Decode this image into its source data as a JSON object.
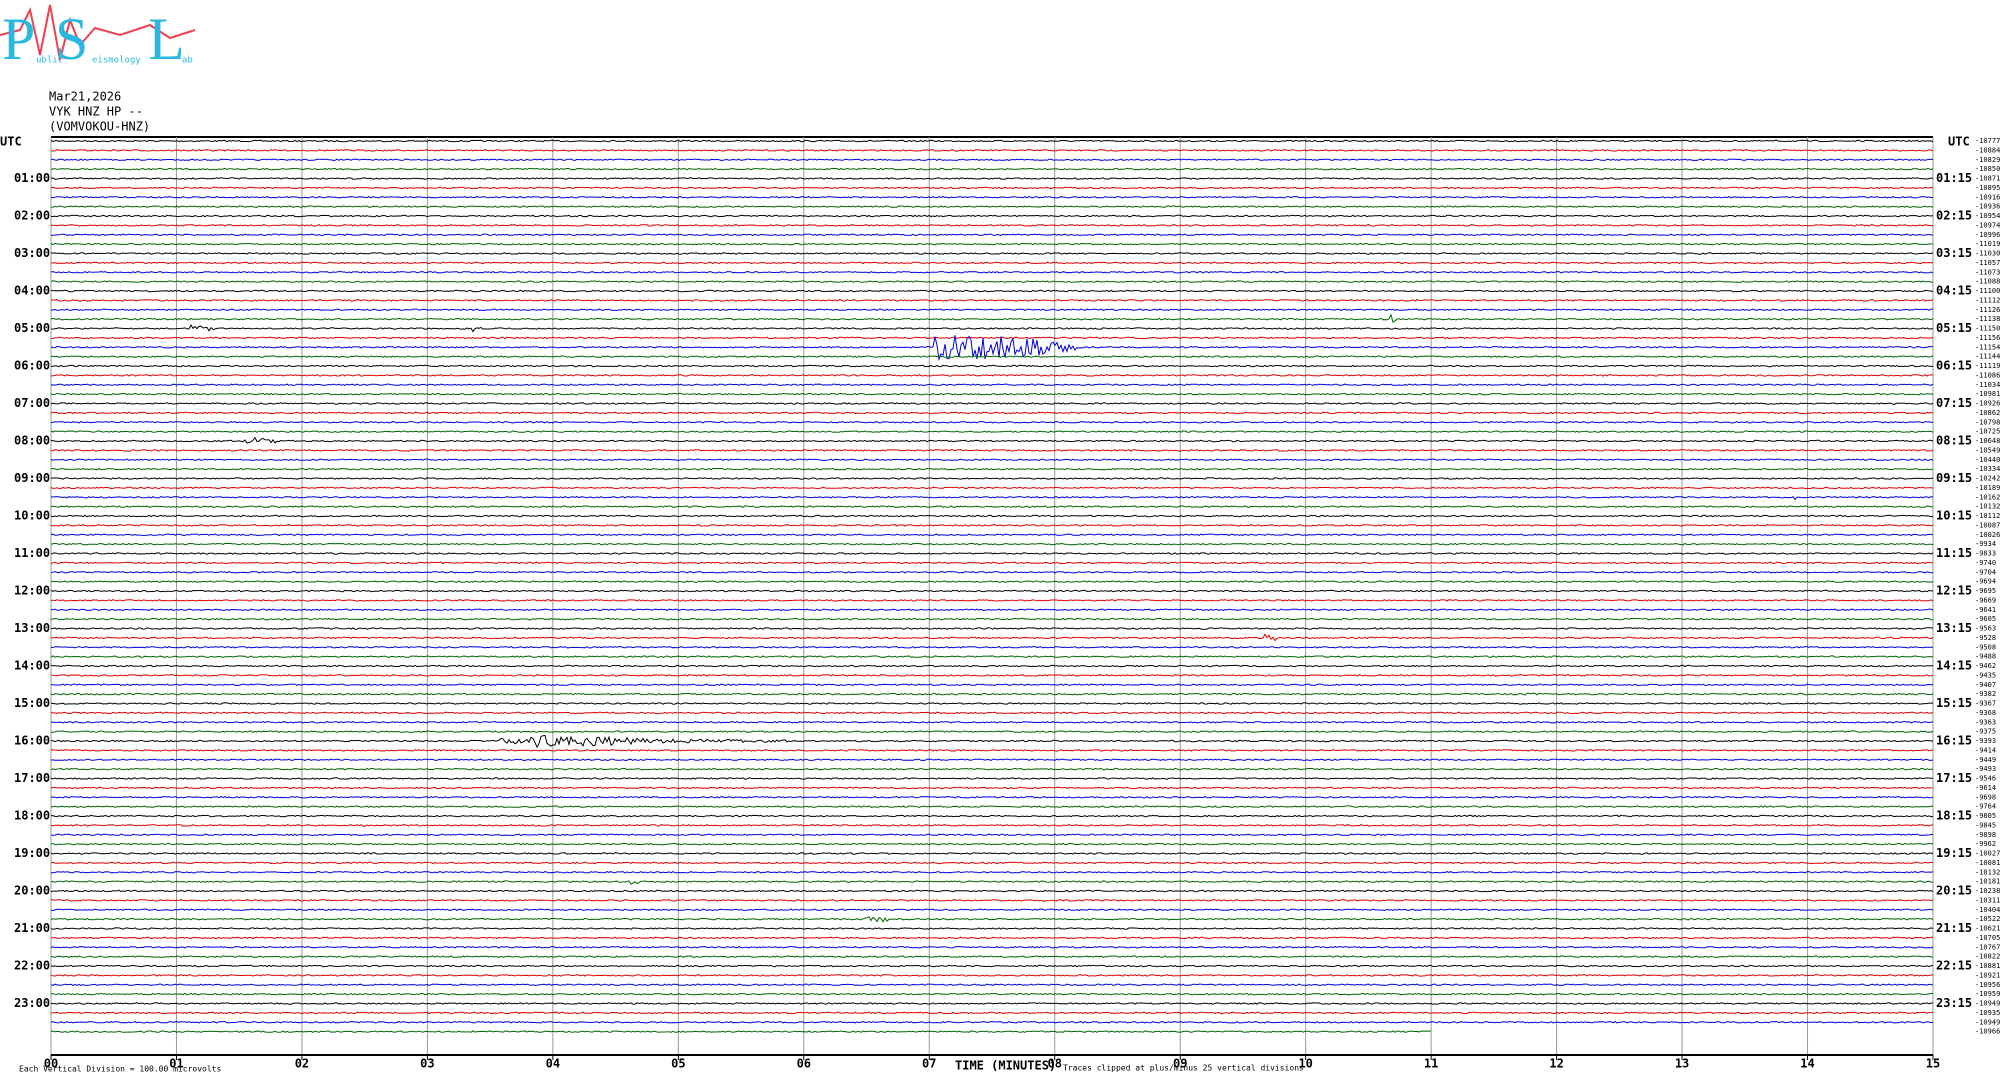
{
  "logo": {
    "letters": [
      "P",
      "S",
      "L"
    ],
    "small": [
      "ublic",
      "eismology",
      "ab"
    ]
  },
  "header": {
    "date": "Mar21,2026",
    "station": "VYK HNZ HP --",
    "name": "(VOMVOKOU-HNZ)"
  },
  "left_top": "UTC",
  "right_top": "UTC",
  "left_hours": [
    "01:00",
    "02:00",
    "03:00",
    "04:00",
    "05:00",
    "06:00",
    "07:00",
    "08:00",
    "09:00",
    "10:00",
    "11:00",
    "12:00",
    "13:00",
    "14:00",
    "15:00",
    "16:00",
    "17:00",
    "18:00",
    "19:00",
    "20:00",
    "21:00",
    "22:00",
    "23:00"
  ],
  "right_hours": [
    "01:15",
    "02:15",
    "03:15",
    "04:15",
    "05:15",
    "06:15",
    "07:15",
    "08:15",
    "09:15",
    "10:15",
    "11:15",
    "12:15",
    "13:15",
    "14:15",
    "15:15",
    "16:15",
    "17:15",
    "18:15",
    "19:15",
    "20:15",
    "21:15",
    "22:15",
    "23:15"
  ],
  "offsets": [
    "-10777",
    "-10884",
    "-10829",
    "-10850",
    "-10871",
    "-10895",
    "-10916",
    "-10936",
    "-10954",
    "-10974",
    "-10996",
    "-11019",
    "-11030",
    "-11057",
    "-11073",
    "-11088",
    "-11100",
    "-11112",
    "-11126",
    "-11138",
    "-11150",
    "-11156",
    "-11154",
    "-11144",
    "-11119",
    "-11086",
    "-11034",
    "-10981",
    "-10926",
    "-10862",
    "-10798",
    "-10725",
    "-10648",
    "-10549",
    "-10440",
    "-10334",
    "-10242",
    "-10189",
    "-10162",
    "-10132",
    "-10112",
    "-10087",
    "-10026",
    "-9934",
    "-9833",
    "-9740",
    "-9704",
    "-9694",
    "-9695",
    "-9669",
    "-9641",
    "-9605",
    "-9563",
    "-9528",
    "-9508",
    "-9488",
    "-9462",
    "-9435",
    "-9407",
    "-9382",
    "-9367",
    "-9368",
    "-9363",
    "-9375",
    "-9393",
    "-9414",
    "-9449",
    "-9493",
    "-9546",
    "-9614",
    "-9698",
    "-9764",
    "-9805",
    "-9845",
    "-9898",
    "-9962",
    "-10027",
    "-10081",
    "-10132",
    "-10181",
    "-10238",
    "-10311",
    "-10404",
    "-10522",
    "-10621",
    "-10705",
    "-10767",
    "-10822",
    "-10881",
    "-10921",
    "-10956",
    "-10959",
    "-10949",
    "-10935",
    "-10949",
    "-10966"
  ],
  "minutes": [
    "00",
    "01",
    "02",
    "03",
    "04",
    "05",
    "06",
    "07",
    "08",
    "09",
    "10",
    "11",
    "12",
    "13",
    "14",
    "15"
  ],
  "footer": {
    "scale": "Each Vertical Division =  100.00 microvolts",
    "axis": "TIME (MINUTES)",
    "clip": "Traces clipped at plus/minus 25 vertical divisions"
  }
}
